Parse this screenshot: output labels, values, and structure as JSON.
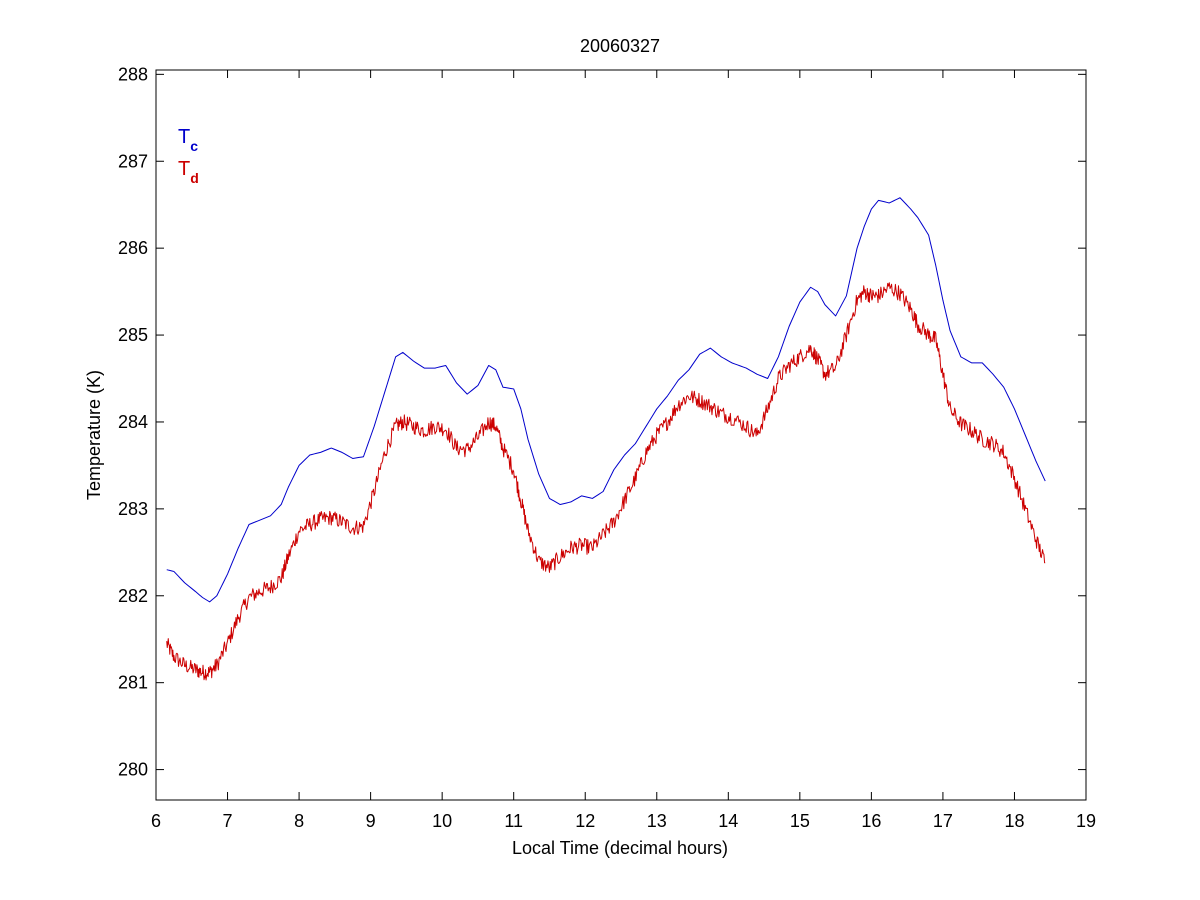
{
  "chart_data": {
    "type": "line",
    "title": "20060327",
    "xlabel": "Local Time (decimal hours)",
    "ylabel": "Temperature (K)",
    "xlim": [
      6,
      19
    ],
    "ylim": [
      279.65,
      288.05
    ],
    "xticks": [
      6,
      7,
      8,
      9,
      10,
      11,
      12,
      13,
      14,
      15,
      16,
      17,
      18,
      19
    ],
    "yticks": [
      280,
      281,
      282,
      283,
      284,
      285,
      286,
      287,
      288
    ],
    "grid": false,
    "legend_position": "top-left",
    "series": [
      {
        "name": "Tc",
        "legend_main": "T",
        "legend_sub": "c",
        "color": "#0000cc",
        "noise": 0,
        "x": [
          6.15,
          6.25,
          6.4,
          6.55,
          6.65,
          6.75,
          6.85,
          7.0,
          7.15,
          7.3,
          7.45,
          7.6,
          7.75,
          7.85,
          8.0,
          8.15,
          8.3,
          8.45,
          8.6,
          8.75,
          8.9,
          9.05,
          9.2,
          9.35,
          9.45,
          9.6,
          9.75,
          9.9,
          10.05,
          10.2,
          10.35,
          10.5,
          10.65,
          10.75,
          10.85,
          11.0,
          11.1,
          11.2,
          11.35,
          11.5,
          11.65,
          11.8,
          11.95,
          12.1,
          12.25,
          12.4,
          12.55,
          12.7,
          12.85,
          13.0,
          13.15,
          13.3,
          13.45,
          13.6,
          13.75,
          13.9,
          14.05,
          14.25,
          14.4,
          14.55,
          14.7,
          14.85,
          15.0,
          15.15,
          15.25,
          15.35,
          15.5,
          15.65,
          15.8,
          15.9,
          16.0,
          16.1,
          16.25,
          16.4,
          16.55,
          16.65,
          16.8,
          16.9,
          17.0,
          17.1,
          17.25,
          17.4,
          17.55,
          17.7,
          17.85,
          18.0,
          18.15,
          18.3,
          18.43
        ],
        "y": [
          282.3,
          282.28,
          282.15,
          282.05,
          281.98,
          281.93,
          282.0,
          282.25,
          282.55,
          282.82,
          282.87,
          282.92,
          283.05,
          283.25,
          283.5,
          283.62,
          283.65,
          283.7,
          283.65,
          283.58,
          283.6,
          283.95,
          284.35,
          284.75,
          284.8,
          284.7,
          284.62,
          284.62,
          284.65,
          284.45,
          284.32,
          284.42,
          284.65,
          284.6,
          284.4,
          284.38,
          284.15,
          283.8,
          283.4,
          283.12,
          283.05,
          283.08,
          283.15,
          283.12,
          283.2,
          283.45,
          283.62,
          283.75,
          283.95,
          284.15,
          284.3,
          284.48,
          284.6,
          284.78,
          284.85,
          284.75,
          284.68,
          284.62,
          284.55,
          284.5,
          284.75,
          285.1,
          285.38,
          285.55,
          285.5,
          285.35,
          285.22,
          285.45,
          286.0,
          286.25,
          286.45,
          286.55,
          286.52,
          286.58,
          286.45,
          286.35,
          286.15,
          285.8,
          285.4,
          285.05,
          284.75,
          284.68,
          284.68,
          284.55,
          284.4,
          284.15,
          283.85,
          283.55,
          283.32
        ]
      },
      {
        "name": "Td",
        "legend_main": "T",
        "legend_sub": "d",
        "color": "#cc0000",
        "noise": 0.09,
        "x": [
          6.15,
          6.25,
          6.4,
          6.55,
          6.65,
          6.75,
          6.85,
          7.0,
          7.15,
          7.3,
          7.45,
          7.6,
          7.75,
          7.85,
          8.0,
          8.15,
          8.3,
          8.45,
          8.6,
          8.75,
          8.9,
          9.05,
          9.2,
          9.35,
          9.45,
          9.6,
          9.75,
          9.9,
          10.05,
          10.2,
          10.35,
          10.5,
          10.65,
          10.75,
          10.85,
          11.0,
          11.1,
          11.2,
          11.35,
          11.5,
          11.65,
          11.8,
          11.95,
          12.1,
          12.25,
          12.4,
          12.55,
          12.7,
          12.85,
          13.0,
          13.15,
          13.3,
          13.45,
          13.6,
          13.75,
          13.9,
          14.05,
          14.25,
          14.4,
          14.55,
          14.7,
          14.85,
          15.0,
          15.15,
          15.25,
          15.35,
          15.5,
          15.65,
          15.8,
          15.9,
          16.0,
          16.1,
          16.25,
          16.4,
          16.55,
          16.65,
          16.8,
          16.9,
          17.0,
          17.1,
          17.25,
          17.4,
          17.55,
          17.7,
          17.85,
          18.0,
          18.15,
          18.3,
          18.43
        ],
        "y": [
          281.45,
          281.3,
          281.2,
          281.15,
          281.12,
          281.12,
          281.2,
          281.45,
          281.75,
          281.98,
          282.05,
          282.1,
          282.2,
          282.45,
          282.75,
          282.82,
          282.88,
          282.9,
          282.85,
          282.78,
          282.8,
          283.2,
          283.65,
          283.95,
          284.0,
          283.95,
          283.9,
          283.95,
          283.92,
          283.7,
          283.68,
          283.82,
          284.0,
          283.95,
          283.7,
          283.45,
          283.1,
          282.75,
          282.4,
          282.32,
          282.45,
          282.55,
          282.58,
          282.55,
          282.7,
          282.85,
          283.1,
          283.35,
          283.65,
          283.85,
          284.0,
          284.2,
          284.3,
          284.25,
          284.18,
          284.1,
          284.05,
          283.95,
          283.85,
          284.15,
          284.5,
          284.65,
          284.75,
          284.85,
          284.72,
          284.55,
          284.62,
          285.0,
          285.4,
          285.5,
          285.45,
          285.45,
          285.55,
          285.48,
          285.3,
          285.12,
          285.0,
          284.95,
          284.55,
          284.15,
          283.98,
          283.9,
          283.8,
          283.75,
          283.65,
          283.35,
          283.0,
          282.65,
          282.38
        ]
      }
    ]
  }
}
